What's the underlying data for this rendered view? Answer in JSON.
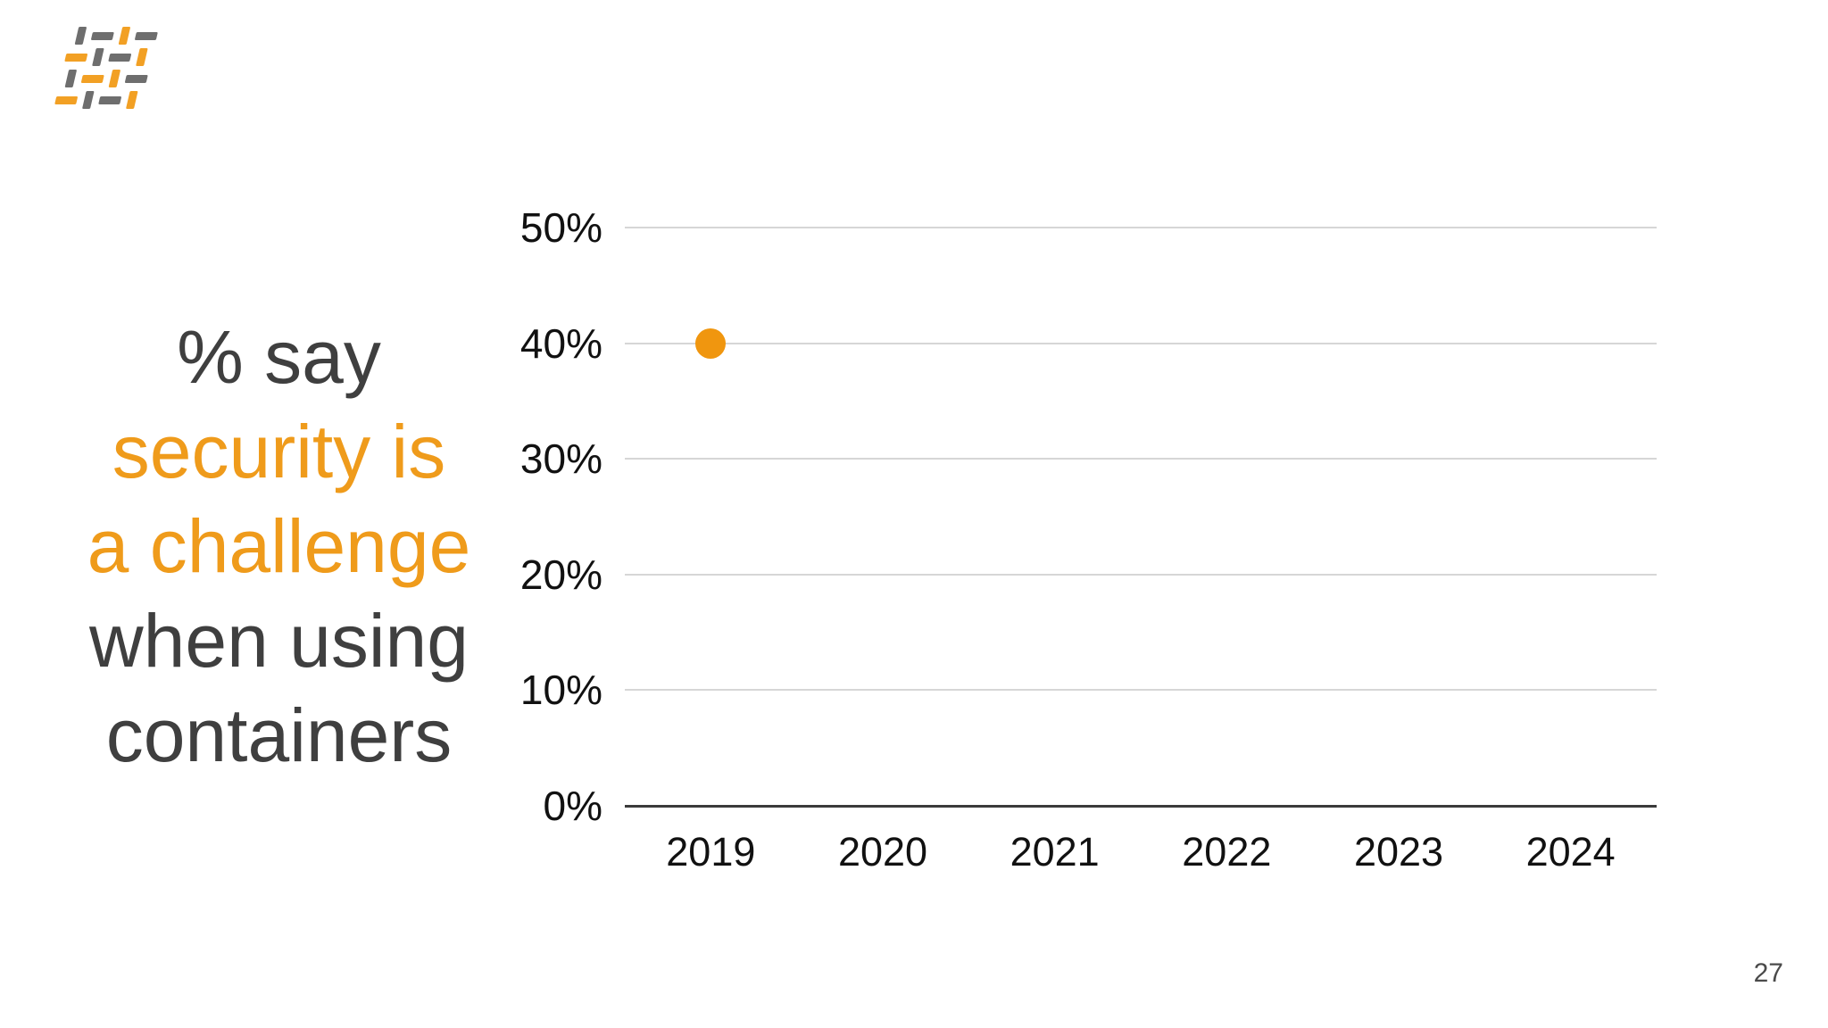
{
  "slide": {
    "background": "#ffffff",
    "page_number": "27"
  },
  "logo": {
    "colors": {
      "gray": "#6e6e6e",
      "orange": "#f2a024"
    },
    "pattern": [
      [
        {
          "o": "v",
          "c": "gray"
        },
        {
          "o": "h",
          "c": "gray"
        },
        {
          "o": "v",
          "c": "orange"
        },
        {
          "o": "h",
          "c": "gray"
        }
      ],
      [
        {
          "o": "h",
          "c": "orange"
        },
        {
          "o": "v",
          "c": "gray"
        },
        {
          "o": "h",
          "c": "gray"
        },
        {
          "o": "v",
          "c": "orange"
        }
      ],
      [
        {
          "o": "v",
          "c": "gray"
        },
        {
          "o": "h",
          "c": "orange"
        },
        {
          "o": "v",
          "c": "orange"
        },
        {
          "o": "h",
          "c": "gray"
        }
      ],
      [
        {
          "o": "h",
          "c": "orange"
        },
        {
          "o": "v",
          "c": "gray"
        },
        {
          "o": "h",
          "c": "gray"
        },
        {
          "o": "v",
          "c": "orange"
        }
      ]
    ]
  },
  "title": {
    "lines": [
      {
        "text": "% say",
        "color": "#3f3f3f"
      },
      {
        "text": "security is",
        "color": "#ef9b1b"
      },
      {
        "text": "a challenge",
        "color": "#ef9b1b"
      },
      {
        "text": "when using",
        "color": "#3f3f3f"
      },
      {
        "text": "containers",
        "color": "#3f3f3f"
      }
    ]
  },
  "chart_data": {
    "type": "scatter",
    "title": "% say security is a challenge when using containers",
    "categories": [
      "2019",
      "2020",
      "2021",
      "2022",
      "2023",
      "2024"
    ],
    "series": [
      {
        "name": "% say security is a challenge when using containers",
        "color": "#f0960f",
        "points": [
          {
            "x": "2019",
            "y": 40
          }
        ]
      }
    ],
    "xlabel": "",
    "ylabel": "",
    "ylim": [
      0,
      50
    ],
    "y_ticks": [
      {
        "value": 50,
        "label": "50%"
      },
      {
        "value": 40,
        "label": "40%"
      },
      {
        "value": 30,
        "label": "30%"
      },
      {
        "value": 20,
        "label": "20%"
      },
      {
        "value": 10,
        "label": "10%"
      },
      {
        "value": 0,
        "label": "0%"
      }
    ],
    "grid": "horizontal",
    "gridline_color": "#d6d6d6",
    "axis_color": "#3a3a3a",
    "tick_label_color": "#111111",
    "legend_position": "none"
  }
}
